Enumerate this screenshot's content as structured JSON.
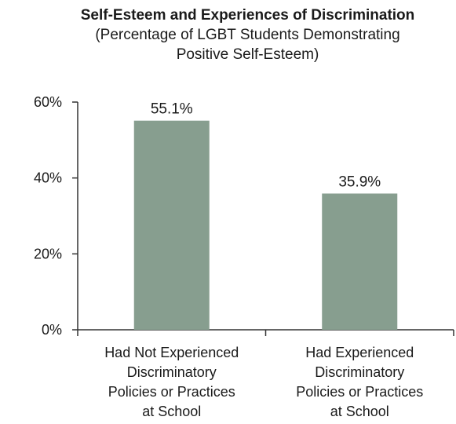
{
  "chart_data": {
    "type": "bar",
    "title": "Self-Esteem and Experiences of Discrimination",
    "subtitle_lines": [
      "(Percentage of LGBT Students Demonstrating",
      "Positive Self-Esteem)"
    ],
    "categories": [
      [
        "Had Not Experienced",
        "Discriminatory",
        "Policies or Practices",
        "at School"
      ],
      [
        "Had Experienced",
        "Discriminatory",
        "Policies or Practices",
        "at School"
      ]
    ],
    "values": [
      55.1,
      35.9
    ],
    "data_labels": [
      "55.1%",
      "35.9%"
    ],
    "ylim": [
      0,
      60
    ],
    "yticks": [
      0,
      20,
      40,
      60
    ],
    "ytick_labels": [
      "0%",
      "20%",
      "40%",
      "60%"
    ],
    "bar_color": "#879e8f",
    "axis_color": "#333333",
    "grid": false,
    "legend": "none"
  }
}
